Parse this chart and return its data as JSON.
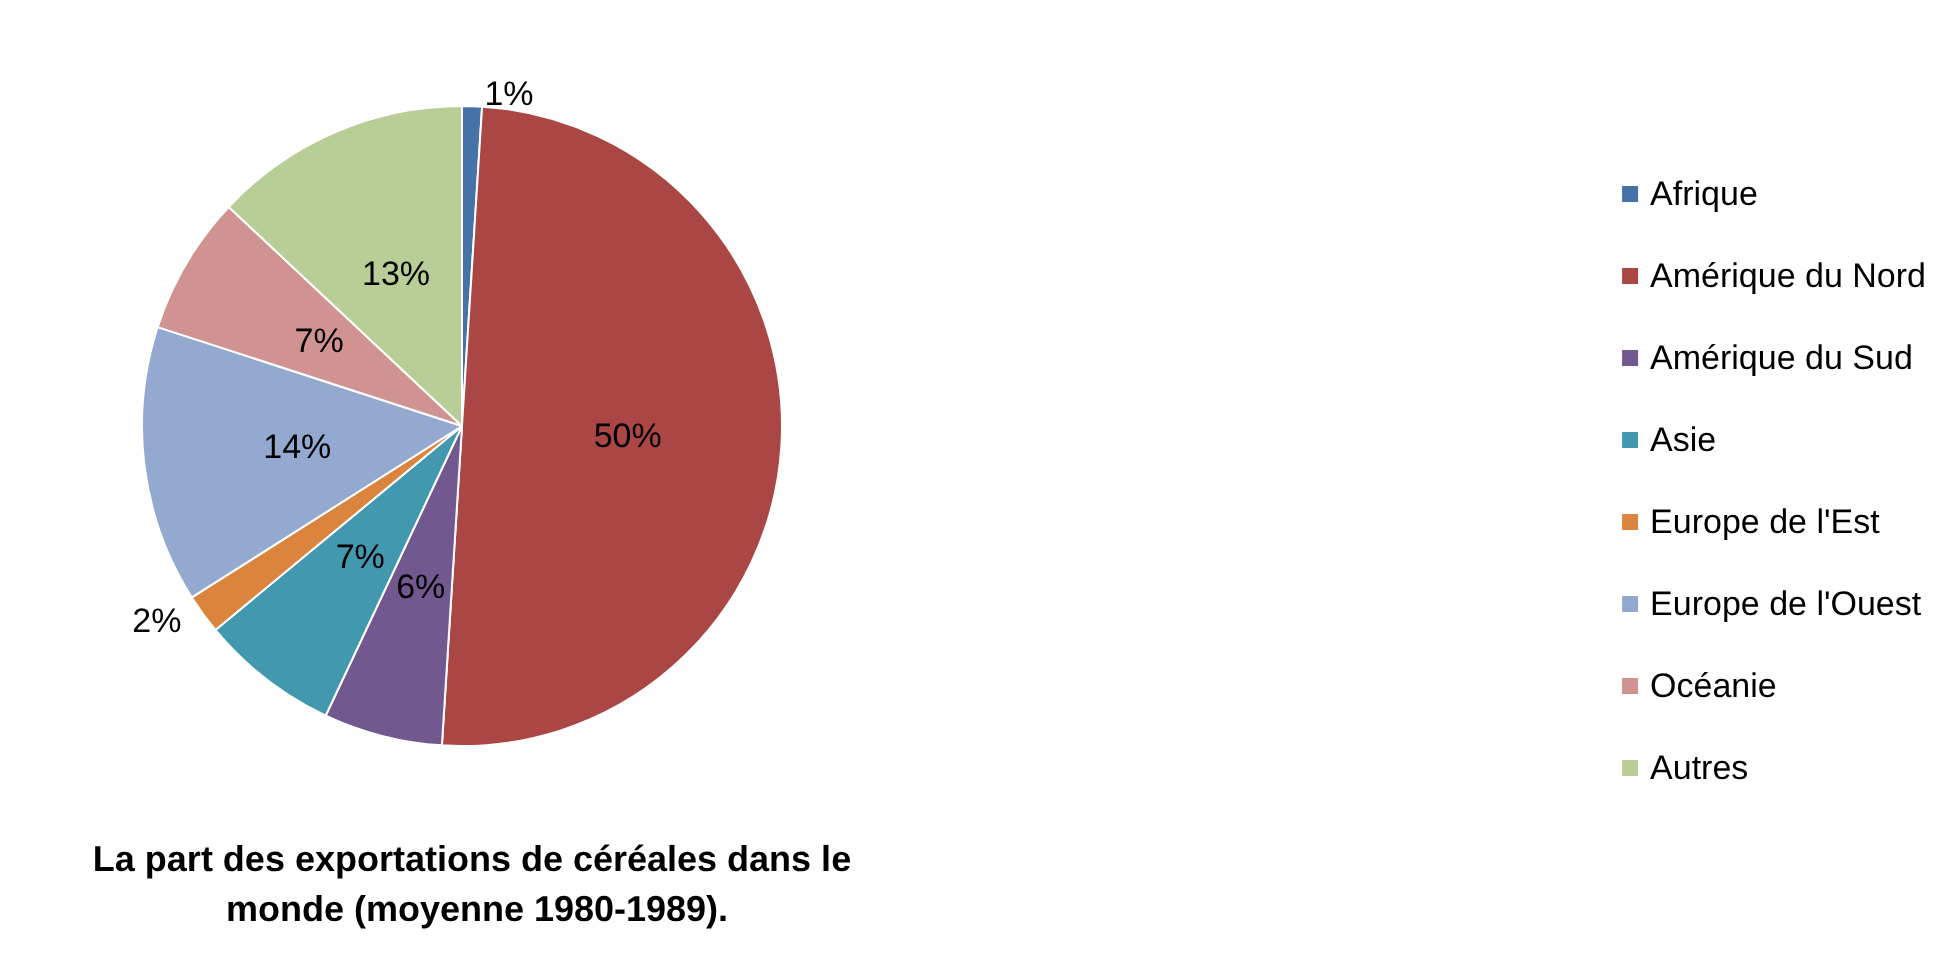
{
  "chart_data": {
    "type": "pie",
    "title": "La part des exportations de céréales dans le monde (moyenne 1980-1989).",
    "categories": [
      "Afrique",
      "Amérique du Nord",
      "Amérique du Sud",
      "Asie",
      "Europe de l'Est",
      "Europe de l'Ouest",
      "Océanie",
      "Autres"
    ],
    "values": [
      1,
      50,
      6,
      7,
      2,
      14,
      7,
      13
    ],
    "colors": [
      "#4572a7",
      "#aa4643",
      "#71588f",
      "#4198af",
      "#db843d",
      "#93a9cf",
      "#d19392",
      "#b9cd96"
    ],
    "value_labels": [
      "1%",
      "50%",
      "6%",
      "7%",
      "2%",
      "14%",
      "7%",
      "13%"
    ],
    "legend": "right"
  }
}
